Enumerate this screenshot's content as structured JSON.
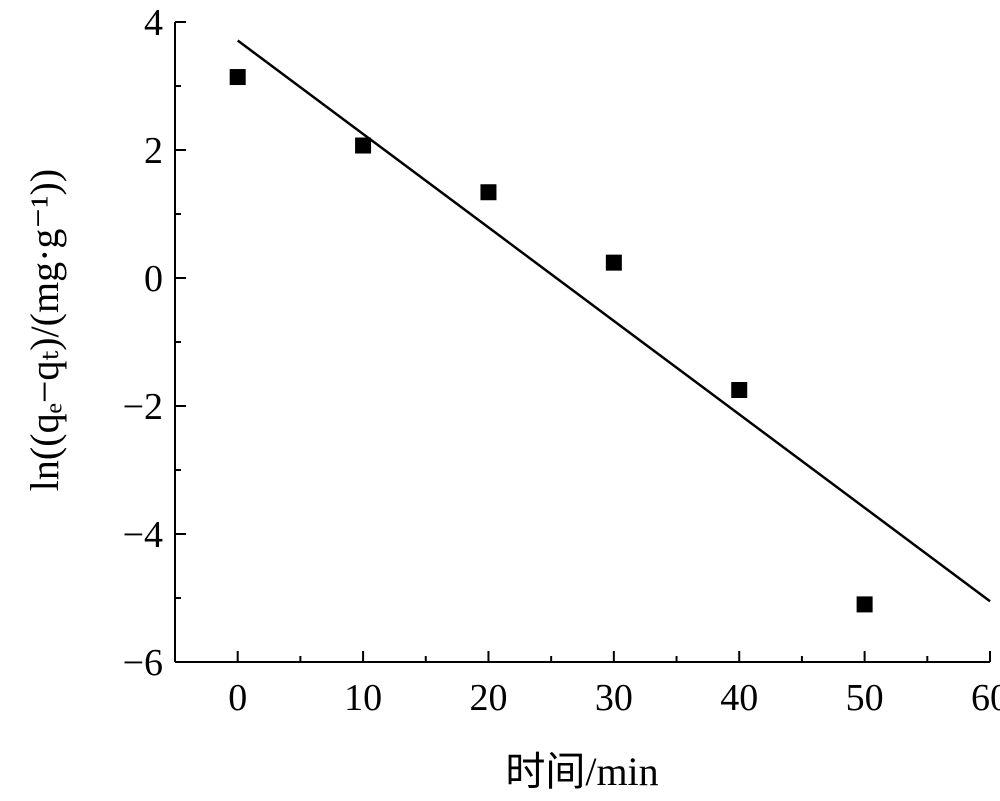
{
  "chart_data": {
    "type": "scatter",
    "xlabel": "时间/min",
    "ylabel": "ln((qₑ−qₜ)/(mg·g⁻¹))",
    "xlim": [
      -5,
      60
    ],
    "ylim": [
      -6,
      4
    ],
    "xticks": [
      0,
      10,
      20,
      30,
      40,
      50,
      60
    ],
    "yticks": [
      4,
      2,
      0,
      -2,
      -4,
      -6
    ],
    "ytick_labels": [
      "4",
      "2",
      "0",
      "−2",
      "−4",
      "−6"
    ],
    "grid": false,
    "series": [
      {
        "marker": "square",
        "color": "#000000",
        "x": [
          0,
          10,
          20,
          30,
          40,
          50
        ],
        "y": [
          3.14,
          2.07,
          1.34,
          0.24,
          -1.75,
          -5.1
        ]
      }
    ],
    "fit_line": {
      "color": "#000000",
      "x": [
        0,
        60
      ],
      "y": [
        3.71,
        -5.05
      ]
    }
  }
}
